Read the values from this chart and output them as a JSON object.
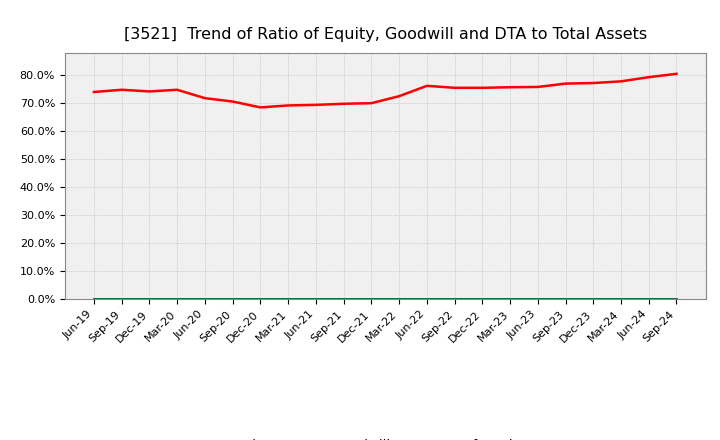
{
  "title": "[3521]  Trend of Ratio of Equity, Goodwill and DTA to Total Assets",
  "xlabel": "",
  "ylabel": "",
  "ylim": [
    0.0,
    0.88
  ],
  "yticks": [
    0.0,
    0.1,
    0.2,
    0.3,
    0.4,
    0.5,
    0.6,
    0.7,
    0.8
  ],
  "x_labels": [
    "Jun-19",
    "Sep-19",
    "Dec-19",
    "Mar-20",
    "Jun-20",
    "Sep-20",
    "Dec-20",
    "Mar-21",
    "Jun-21",
    "Sep-21",
    "Dec-21",
    "Mar-22",
    "Jun-22",
    "Sep-22",
    "Dec-22",
    "Mar-23",
    "Jun-23",
    "Sep-23",
    "Dec-23",
    "Mar-24",
    "Jun-24",
    "Sep-24"
  ],
  "equity": [
    0.74,
    0.748,
    0.742,
    0.748,
    0.718,
    0.706,
    0.685,
    0.692,
    0.694,
    0.698,
    0.7,
    0.725,
    0.762,
    0.755,
    0.755,
    0.757,
    0.758,
    0.77,
    0.772,
    0.778,
    0.793,
    0.805
  ],
  "goodwill": [
    0.0,
    0.0,
    0.0,
    0.0,
    0.0,
    0.0,
    0.0,
    0.0,
    0.0,
    0.0,
    0.0,
    0.0,
    0.0,
    0.0,
    0.0,
    0.0,
    0.0,
    0.0,
    0.0,
    0.0,
    0.0,
    0.0
  ],
  "dta": [
    0.0,
    0.0,
    0.0,
    0.0,
    0.0,
    0.0,
    0.0,
    0.0,
    0.0,
    0.0,
    0.0,
    0.0,
    0.0,
    0.0,
    0.0,
    0.0,
    0.0,
    0.0,
    0.0,
    0.0,
    0.0,
    0.0
  ],
  "equity_color": "#ff0000",
  "goodwill_color": "#0000ff",
  "dta_color": "#008000",
  "bg_color": "#ffffff",
  "plot_bg_color": "#f0f0f0",
  "grid_color": "#b0b0b0",
  "title_fontsize": 11.5,
  "tick_fontsize": 8,
  "legend_fontsize": 9.5
}
